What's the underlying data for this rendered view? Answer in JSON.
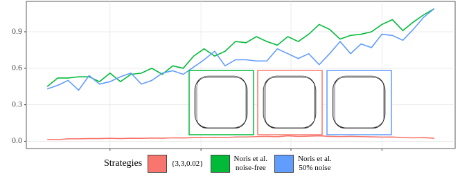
{
  "chart_data": {
    "type": "line",
    "x": [
      0,
      1,
      2,
      3,
      4,
      5,
      6,
      7,
      8,
      9,
      10,
      11,
      12,
      13,
      14,
      15,
      16,
      17,
      18,
      19,
      20,
      21,
      22,
      23,
      24,
      25,
      26,
      27,
      28,
      29,
      30,
      31,
      32,
      33,
      34,
      35,
      36,
      37
    ],
    "series": [
      {
        "name": "{3,3,0.02}",
        "color": "#F8766D",
        "values": [
          0.015,
          0.013,
          0.02,
          0.02,
          0.022,
          0.022,
          0.024,
          0.022,
          0.025,
          0.024,
          0.026,
          0.025,
          0.028,
          0.027,
          0.03,
          0.03,
          0.032,
          0.03,
          0.035,
          0.035,
          0.038,
          0.04,
          0.037,
          0.045,
          0.04,
          0.042,
          0.045,
          0.04,
          0.038,
          0.04,
          0.038,
          0.036,
          0.034,
          0.035,
          0.03,
          0.028,
          0.03,
          0.025
        ]
      },
      {
        "name": "Noris et al.\nnoise-free",
        "color": "#00BA38",
        "values": [
          0.45,
          0.52,
          0.52,
          0.53,
          0.53,
          0.49,
          0.56,
          0.49,
          0.55,
          0.56,
          0.6,
          0.55,
          0.62,
          0.6,
          0.7,
          0.76,
          0.7,
          0.74,
          0.82,
          0.81,
          0.86,
          0.82,
          0.79,
          0.86,
          0.82,
          0.88,
          0.96,
          0.92,
          0.84,
          0.87,
          0.88,
          0.9,
          0.96,
          1.0,
          0.91,
          0.98,
          1.04,
          1.09
        ]
      },
      {
        "name": "Noris et al.\n50% noise",
        "color": "#619CFF",
        "values": [
          0.43,
          0.46,
          0.5,
          0.42,
          0.54,
          0.47,
          0.49,
          0.53,
          0.56,
          0.47,
          0.5,
          0.56,
          0.58,
          0.55,
          0.61,
          0.67,
          0.74,
          0.62,
          0.67,
          0.67,
          0.66,
          0.66,
          0.76,
          0.72,
          0.68,
          0.72,
          0.63,
          0.72,
          0.82,
          0.72,
          0.8,
          0.77,
          0.88,
          0.87,
          0.83,
          0.92,
          1.02,
          1.09
        ]
      }
    ],
    "xlim": [
      -2,
      39
    ],
    "xticks": [
      6,
      14.7,
      23.3,
      32
    ],
    "ylim": [
      -0.06,
      1.15
    ],
    "yticks": [
      {
        "value": 0,
        "label": "0.0"
      },
      0.3,
      0.6,
      0.9
    ],
    "grid": true,
    "legend_title": "Strategies",
    "legend_position": "bottom"
  }
}
